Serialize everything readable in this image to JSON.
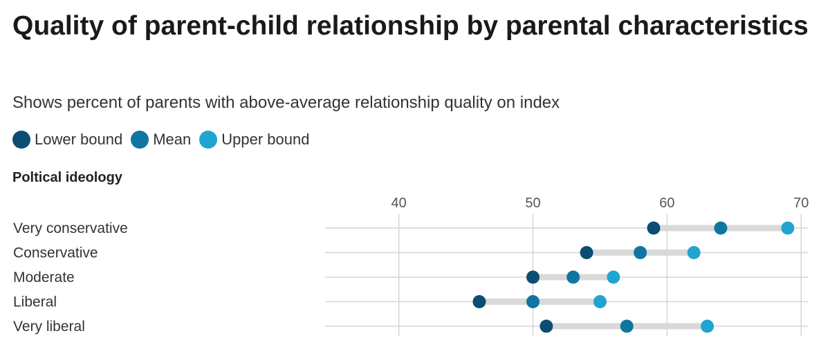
{
  "title": "Quality of parent-child relationship by parental characteristics",
  "subtitle": "Shows percent of parents with above-average relationship quality on index",
  "section_label": "Poltical ideology",
  "legend": [
    {
      "label": "Lower bound",
      "color": "#0b4d73"
    },
    {
      "label": "Mean",
      "color": "#0e76a0"
    },
    {
      "label": "Upper bound",
      "color": "#1fa5cf"
    }
  ],
  "colors": {
    "range_bar": "#d9d9d9",
    "gridline": "#d4d4d4"
  },
  "chart_data": {
    "type": "dot-range",
    "title": "Quality of parent-child relationship by parental characteristics",
    "subtitle": "Shows percent of parents with above-average relationship quality on index",
    "group_label": "Poltical ideology",
    "x_ticks": [
      40,
      50,
      60,
      70
    ],
    "xlim": [
      34.5,
      70.5
    ],
    "grid": true,
    "legend_position": "top-left",
    "categories": [
      "Very conservative",
      "Conservative",
      "Moderate",
      "Liberal",
      "Very liberal"
    ],
    "series": [
      {
        "name": "Lower bound",
        "values": [
          59,
          54,
          50,
          46,
          51
        ]
      },
      {
        "name": "Mean",
        "values": [
          64,
          58,
          53,
          50,
          57
        ]
      },
      {
        "name": "Upper bound",
        "values": [
          69,
          62,
          56,
          55,
          63
        ]
      }
    ]
  }
}
